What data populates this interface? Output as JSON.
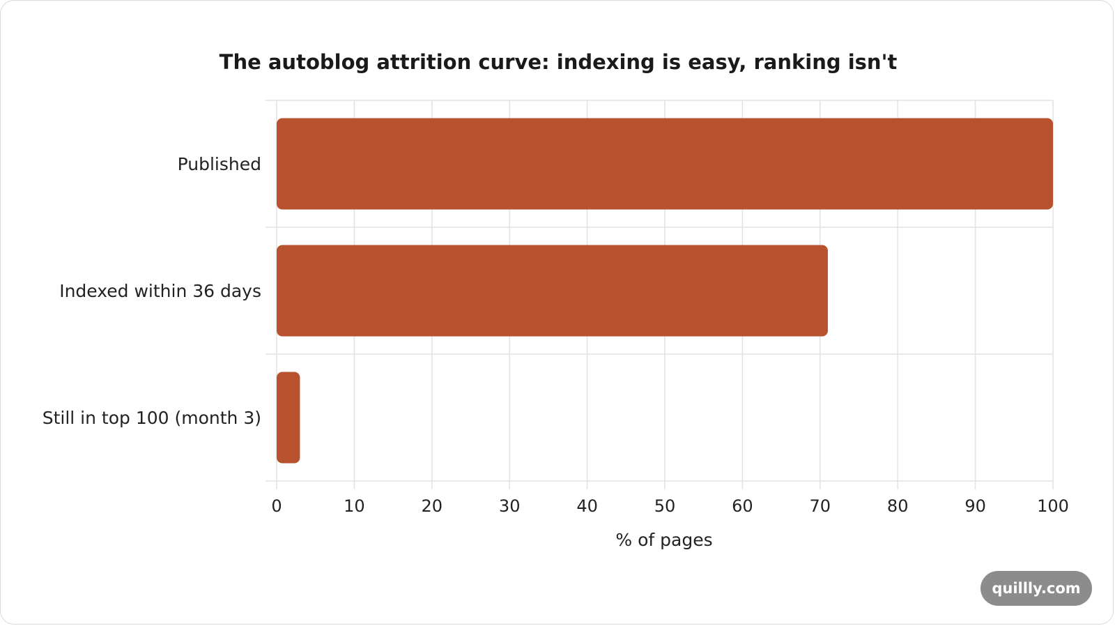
{
  "chart_data": {
    "type": "bar",
    "orientation": "horizontal",
    "title": "The autoblog attrition curve: indexing is easy, ranking isn't",
    "categories": [
      "Published",
      "Indexed within 36 days",
      "Still in top 100 (month 3)"
    ],
    "values": [
      100,
      71,
      3
    ],
    "xlabel": "% of pages",
    "ylabel": "",
    "xlim": [
      0,
      100
    ],
    "xticks": [
      0,
      10,
      20,
      30,
      40,
      50,
      60,
      70,
      80,
      90,
      100
    ],
    "grid": true,
    "bar_color": "#b8512d"
  },
  "watermark": "quillly.com"
}
